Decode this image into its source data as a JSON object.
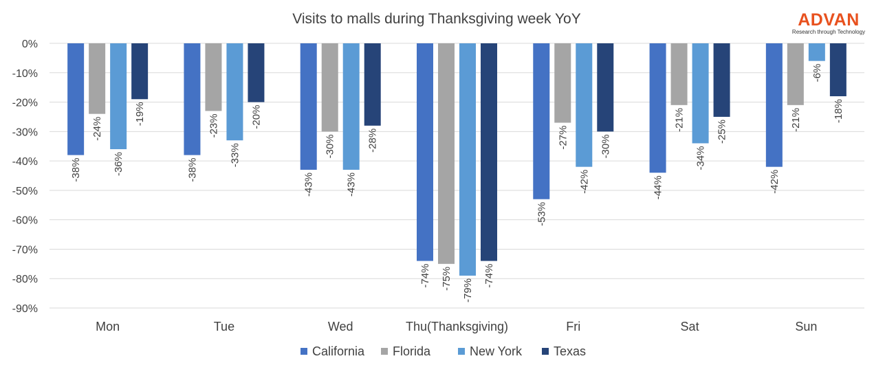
{
  "chart_data": {
    "type": "bar",
    "title": "Visits to malls during Thanksgiving week YoY",
    "xlabel": "",
    "ylabel": "",
    "categories": [
      "Mon",
      "Tue",
      "Wed",
      "Thu(Thanksgiving)",
      "Fri",
      "Sat",
      "Sun"
    ],
    "series": [
      {
        "name": "California",
        "color": "#4472c4",
        "values": [
          -38,
          -38,
          -43,
          -74,
          -53,
          -44,
          -42
        ]
      },
      {
        "name": "Florida",
        "color": "#a5a5a5",
        "values": [
          -24,
          -23,
          -30,
          -75,
          -27,
          -21,
          -21
        ]
      },
      {
        "name": "New York",
        "color": "#5b9bd5",
        "values": [
          -36,
          -33,
          -43,
          -79,
          -42,
          -34,
          -6
        ]
      },
      {
        "name": "Texas",
        "color": "#264478",
        "values": [
          -19,
          -20,
          -28,
          -74,
          -30,
          -25,
          -18
        ]
      }
    ],
    "ylim": [
      -90,
      0
    ],
    "yticks": [
      "0%",
      "-10%",
      "-20%",
      "-30%",
      "-40%",
      "-50%",
      "-60%",
      "-70%",
      "-80%",
      "-90%"
    ],
    "grid": true,
    "legend": "bottom"
  },
  "brand": {
    "name": "ADVAN",
    "tagline": "Research through Technology",
    "color": "#e8511e"
  }
}
